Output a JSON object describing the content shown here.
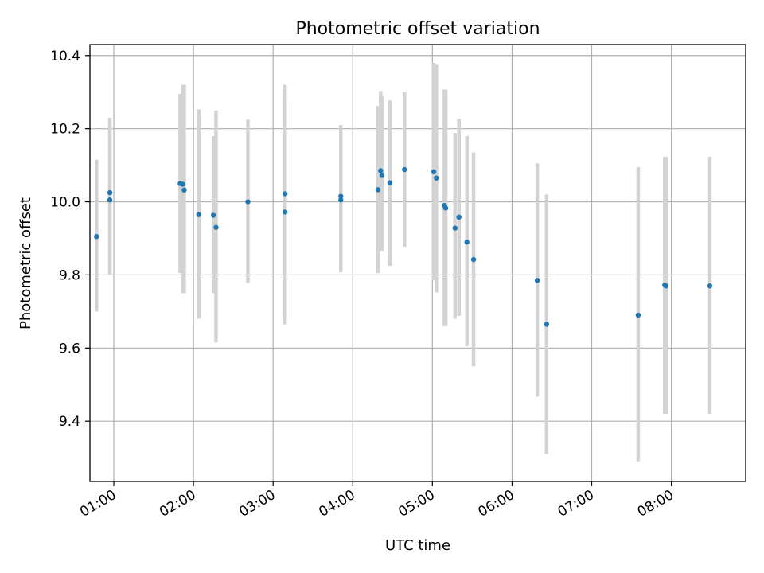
{
  "chart_data": {
    "type": "scatter",
    "title": "Photometric offset variation",
    "xlabel": "UTC time",
    "ylabel": "Photometric offset",
    "grid": true,
    "x_tick_rotation_deg": 30,
    "xlim": [
      "00:42",
      "08:56"
    ],
    "ylim": [
      9.235,
      10.43
    ],
    "x_ticks": [
      "01:00",
      "02:00",
      "03:00",
      "04:00",
      "05:00",
      "06:00",
      "07:00",
      "08:00"
    ],
    "y_ticks": [
      "9.4",
      "9.6",
      "9.8",
      "10.0",
      "10.2",
      "10.4"
    ],
    "marker_color": "#1f77b4",
    "errorbar_color": "#d3d3d3",
    "points": [
      {
        "x": "00:47",
        "y": 9.905,
        "low": 9.7,
        "high": 10.115
      },
      {
        "x": "00:57",
        "y": 10.025,
        "low": 9.8,
        "high": 10.23
      },
      {
        "x": "00:57",
        "y": 10.005,
        "low": 9.8,
        "high": 10.23
      },
      {
        "x": "01:50",
        "y": 10.05,
        "low": 9.805,
        "high": 10.295
      },
      {
        "x": "01:52",
        "y": 10.048,
        "low": 9.75,
        "high": 10.32
      },
      {
        "x": "01:53",
        "y": 10.032,
        "low": 9.75,
        "high": 10.32
      },
      {
        "x": "02:04",
        "y": 9.965,
        "low": 9.68,
        "high": 10.253
      },
      {
        "x": "02:15",
        "y": 9.963,
        "low": 9.75,
        "high": 10.18
      },
      {
        "x": "02:17",
        "y": 9.93,
        "low": 9.615,
        "high": 10.25
      },
      {
        "x": "02:41",
        "y": 10.0,
        "low": 9.778,
        "high": 10.225
      },
      {
        "x": "03:09",
        "y": 10.022,
        "low": 9.665,
        "high": 10.32
      },
      {
        "x": "03:09",
        "y": 9.972,
        "low": 9.665,
        "high": 10.28
      },
      {
        "x": "03:51",
        "y": 10.015,
        "low": 9.808,
        "high": 10.21
      },
      {
        "x": "03:51",
        "y": 10.005,
        "low": 9.808,
        "high": 10.21
      },
      {
        "x": "04:19",
        "y": 10.033,
        "low": 9.805,
        "high": 10.262
      },
      {
        "x": "04:21",
        "y": 10.085,
        "low": 9.865,
        "high": 10.303
      },
      {
        "x": "04:22",
        "y": 10.072,
        "low": 9.865,
        "high": 10.29
      },
      {
        "x": "04:28",
        "y": 10.052,
        "low": 9.825,
        "high": 10.277
      },
      {
        "x": "04:39",
        "y": 10.088,
        "low": 9.877,
        "high": 10.3
      },
      {
        "x": "05:01",
        "y": 10.082,
        "low": 9.785,
        "high": 10.38
      },
      {
        "x": "05:03",
        "y": 10.065,
        "low": 9.752,
        "high": 10.375
      },
      {
        "x": "05:09",
        "y": 9.99,
        "low": 9.66,
        "high": 10.307
      },
      {
        "x": "05:10",
        "y": 9.983,
        "low": 9.66,
        "high": 10.307
      },
      {
        "x": "05:17",
        "y": 9.928,
        "low": 9.68,
        "high": 10.188
      },
      {
        "x": "05:20",
        "y": 9.958,
        "low": 9.688,
        "high": 10.227
      },
      {
        "x": "05:26",
        "y": 9.89,
        "low": 9.605,
        "high": 10.18
      },
      {
        "x": "05:31",
        "y": 9.842,
        "low": 9.55,
        "high": 10.135
      },
      {
        "x": "06:19",
        "y": 9.785,
        "low": 9.467,
        "high": 10.105
      },
      {
        "x": "06:26",
        "y": 9.665,
        "low": 9.31,
        "high": 10.02
      },
      {
        "x": "07:35",
        "y": 9.69,
        "low": 9.29,
        "high": 10.095
      },
      {
        "x": "07:55",
        "y": 9.772,
        "low": 9.42,
        "high": 10.123
      },
      {
        "x": "07:56",
        "y": 9.77,
        "low": 9.42,
        "high": 10.123
      },
      {
        "x": "08:29",
        "y": 9.77,
        "low": 9.42,
        "high": 10.123
      }
    ]
  }
}
